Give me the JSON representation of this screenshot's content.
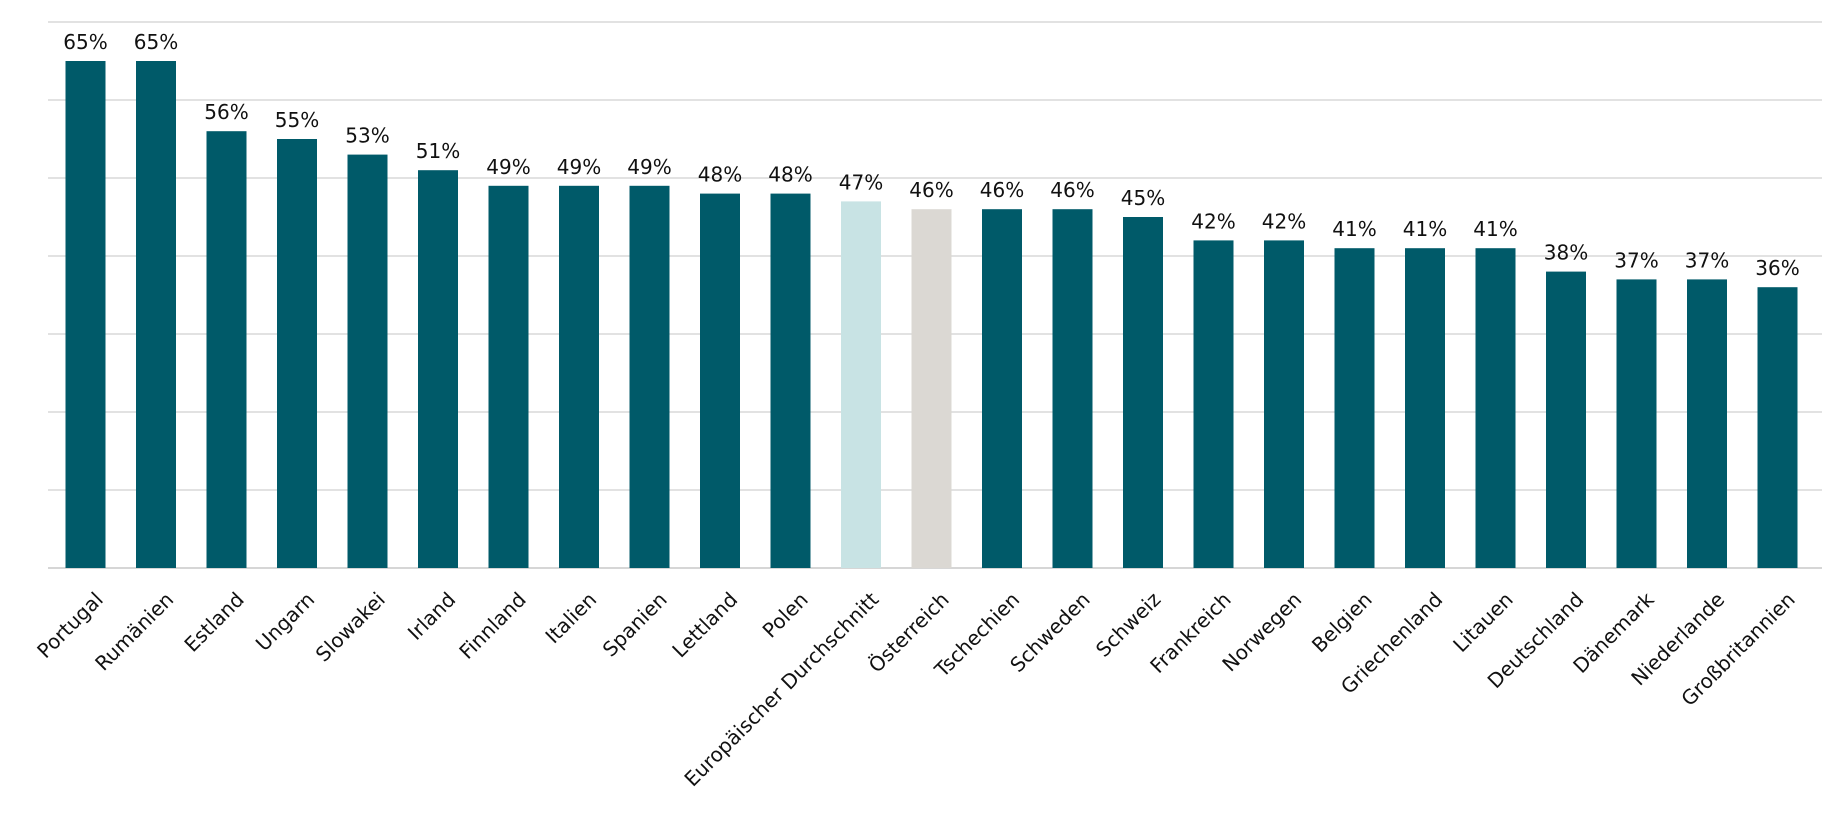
{
  "chart_data": {
    "type": "bar",
    "categories": [
      "Portugal",
      "Rumänien",
      "Estland",
      "Ungarn",
      "Slowakei",
      "Irland",
      "Finnland",
      "Italien",
      "Spanien",
      "Lettland",
      "Polen",
      "Europäischer Durchschnitt",
      "Österreich",
      "Tschechien",
      "Schweden",
      "Schweiz",
      "Frankreich",
      "Norwegen",
      "Belgien",
      "Griechenland",
      "Litauen",
      "Deutschland",
      "Dänemark",
      "Niederlande",
      "Großbritannien"
    ],
    "values": [
      65,
      65,
      56,
      55,
      53,
      51,
      49,
      49,
      49,
      48,
      48,
      47,
      46,
      46,
      46,
      45,
      42,
      42,
      41,
      41,
      41,
      38,
      37,
      37,
      36
    ],
    "data_labels": [
      "65%",
      "65%",
      "56%",
      "55%",
      "53%",
      "51%",
      "49%",
      "49%",
      "49%",
      "48%",
      "48%",
      "47%",
      "46%",
      "46%",
      "46%",
      "45%",
      "42%",
      "42%",
      "41%",
      "41%",
      "41%",
      "38%",
      "37%",
      "37%",
      "36%"
    ],
    "value_format": "percent",
    "ylim": [
      0,
      70
    ],
    "grid": true,
    "gridline_step": 10,
    "y_tick_labels_shown": false,
    "legend": "none",
    "title": "",
    "xlabel": "",
    "ylabel": "",
    "colors": {
      "default": "#005a69",
      "Europäischer Durchschnitt": "#c8e3e4",
      "Österreich": "#dbd8d3"
    }
  }
}
